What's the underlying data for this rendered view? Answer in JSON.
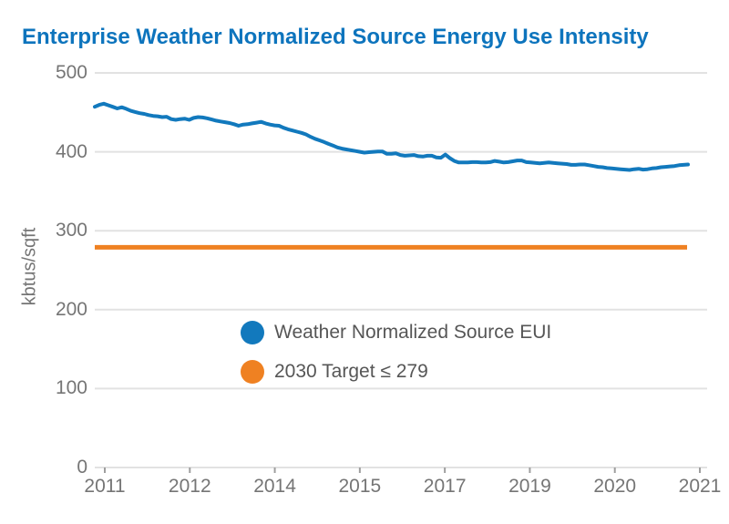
{
  "title": "Enterprise Weather Normalized Source Energy Use Intensity",
  "colors": {
    "title_blue": "#0d74bd",
    "series_blue": "#1279bd",
    "target_orange": "#ef8122",
    "gridline": "#e2e2e2",
    "tick_mark": "#9e9e9e",
    "tick_text": "#757575",
    "legend_text": "#565656"
  },
  "chart_data": {
    "type": "line",
    "title": "Enterprise Weather Normalized Source Energy Use Intensity",
    "xlabel": "",
    "ylabel": "kbtus/sqft",
    "ylim": [
      0,
      500
    ],
    "y_ticks": [
      0,
      100,
      200,
      300,
      400,
      500
    ],
    "x_tick_labels": [
      "2011",
      "2012",
      "2014",
      "2015",
      "2017",
      "2019",
      "2020",
      "2021"
    ],
    "grid": "horizontal-only",
    "legend_position": "center-inside",
    "series": [
      {
        "name": "Weather Normalized Source EUI",
        "type": "line",
        "x_span_note": "monthly samples, early 2011 through late 2020, evenly spaced",
        "values": [
          457,
          459.5,
          461,
          459,
          457,
          455,
          456.5,
          454.5,
          452,
          450.5,
          449,
          448,
          446.5,
          445.5,
          445,
          444,
          444.5,
          441.5,
          440.5,
          441.5,
          442,
          440.5,
          443,
          444,
          443.5,
          442.5,
          441,
          439.5,
          438.5,
          437.5,
          436.5,
          435,
          433,
          434.5,
          435,
          436,
          437,
          438,
          436,
          434.5,
          433.5,
          433,
          430.5,
          428.5,
          427,
          425.5,
          424,
          422,
          419,
          416.5,
          414.5,
          412.5,
          410,
          408,
          405.5,
          404,
          403,
          402,
          401,
          400,
          399,
          399.5,
          400,
          400.5,
          400.5,
          397.5,
          397.5,
          398,
          396,
          395,
          395.5,
          396,
          394.5,
          394,
          395,
          395,
          393,
          392.5,
          396.5,
          392,
          388.5,
          386.5,
          386.5,
          386.5,
          387,
          387,
          386.5,
          386.5,
          387,
          388.5,
          387.5,
          386.5,
          387,
          388,
          389,
          389,
          387,
          386.5,
          386,
          385.5,
          386,
          386.5,
          386,
          385.5,
          385,
          384.5,
          383.5,
          383.5,
          384,
          384,
          383,
          382,
          381,
          380.5,
          379.5,
          379,
          378.5,
          378,
          377.5,
          377,
          378,
          378.5,
          377.5,
          378,
          379,
          379.5,
          380.5,
          381,
          381.5,
          382,
          383,
          383.5,
          384
        ]
      },
      {
        "name": "2030 Target ≤ 279",
        "type": "constant-line",
        "value": 279
      }
    ]
  },
  "legend": {
    "items": [
      {
        "label": "Weather Normalized Source EUI",
        "marker": "circle",
        "color": "#1279bd"
      },
      {
        "label": "2030 Target ≤ 279",
        "marker": "circle",
        "color": "#ef8122"
      }
    ]
  },
  "y_axis": {
    "title": "kbtus/sqft",
    "tick_labels": [
      "0",
      "100",
      "200",
      "300",
      "400",
      "500"
    ]
  },
  "x_axis": {
    "tick_labels": [
      "2011",
      "2012",
      "2014",
      "2015",
      "2017",
      "2019",
      "2020",
      "2021"
    ]
  }
}
